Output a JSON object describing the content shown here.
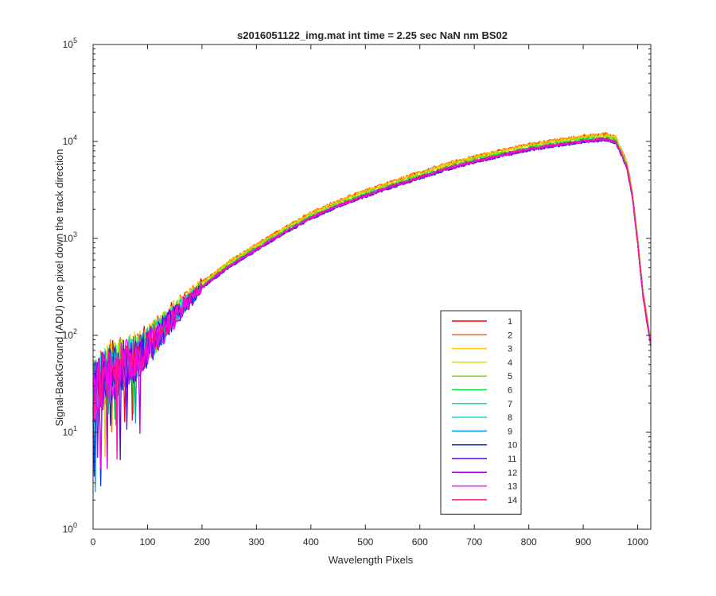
{
  "chart_data": {
    "type": "line",
    "title": "s2016051122_img.mat int time = 2.25 sec  NaN nm BS02",
    "xlabel": "Wavelength Pixels",
    "ylabel": "Signal-BackGround (ADU) one pixel down the track direction",
    "xlim": [
      0,
      1024
    ],
    "ylim": [
      1,
      100000
    ],
    "yscale": "log",
    "grid": false,
    "legend_position": "lower-right",
    "x_ticks": [
      0,
      100,
      200,
      300,
      400,
      500,
      600,
      700,
      800,
      900,
      1000
    ],
    "y_ticks": [
      {
        "value": 1,
        "mantissa": "10",
        "exponent": "0"
      },
      {
        "value": 10,
        "mantissa": "10",
        "exponent": "1"
      },
      {
        "value": 100,
        "mantissa": "10",
        "exponent": "2"
      },
      {
        "value": 1000,
        "mantissa": "10",
        "exponent": "3"
      },
      {
        "value": 10000,
        "mantissa": "10",
        "exponent": "4"
      },
      {
        "value": 100000,
        "mantissa": "10",
        "exponent": "5"
      }
    ],
    "base_curve": {
      "x": [
        0,
        10,
        30,
        50,
        80,
        100,
        150,
        200,
        250,
        300,
        350,
        400,
        450,
        500,
        550,
        600,
        650,
        700,
        750,
        800,
        850,
        900,
        940,
        960,
        980,
        990,
        1000,
        1010,
        1024
      ],
      "y": [
        25,
        30,
        40,
        48,
        60,
        75,
        160,
        320,
        520,
        780,
        1150,
        1650,
        2200,
        2800,
        3500,
        4300,
        5300,
        6300,
        7300,
        8400,
        9300,
        10200,
        10700,
        10000,
        5500,
        2800,
        900,
        250,
        80
      ]
    },
    "series": [
      {
        "name": "1",
        "color": "#ff0000",
        "scale": 1.1
      },
      {
        "name": "2",
        "color": "#ff6a00",
        "scale": 1.12
      },
      {
        "name": "3",
        "color": "#ffc800",
        "scale": 1.1
      },
      {
        "name": "4",
        "color": "#c8e600",
        "scale": 1.07
      },
      {
        "name": "5",
        "color": "#6ee600",
        "scale": 1.04
      },
      {
        "name": "6",
        "color": "#00e632",
        "scale": 1.02
      },
      {
        "name": "7",
        "color": "#00e696",
        "scale": 1.0
      },
      {
        "name": "8",
        "color": "#00e6e6",
        "scale": 0.99
      },
      {
        "name": "9",
        "color": "#0096e6",
        "scale": 0.98
      },
      {
        "name": "10",
        "color": "#0032e6",
        "scale": 0.97
      },
      {
        "name": "11",
        "color": "#5a00e6",
        "scale": 0.97
      },
      {
        "name": "12",
        "color": "#b400e6",
        "scale": 0.98
      },
      {
        "name": "13",
        "color": "#ff00ff",
        "scale": 0.99
      },
      {
        "name": "14",
        "color": "#ff1493",
        "scale": 1.0
      }
    ]
  }
}
